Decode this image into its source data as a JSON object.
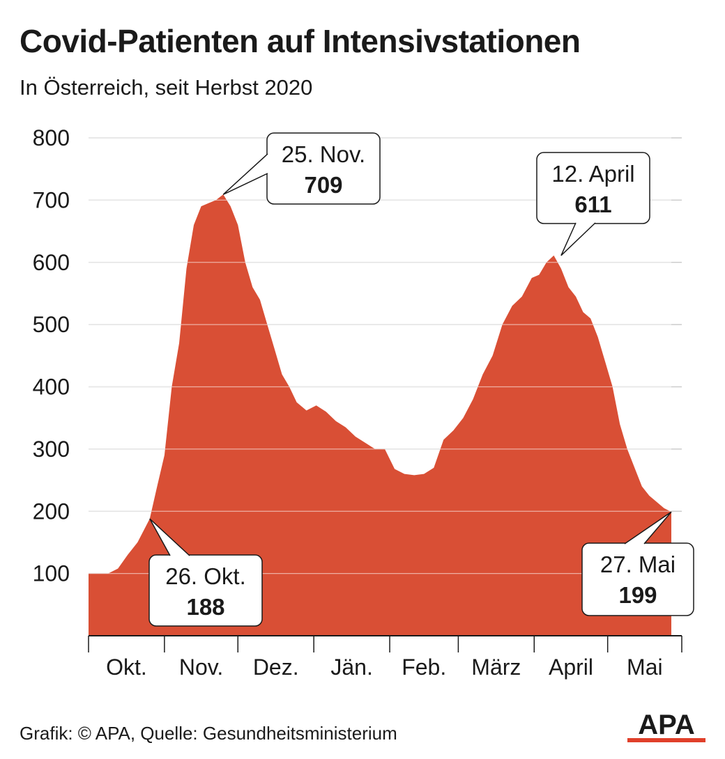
{
  "title": "Covid-Patienten auf Intensivstationen",
  "subtitle": "In Österreich, seit Herbst 2020",
  "footer": "Grafik: © APA, Quelle: Gesundheitsministerium",
  "logo_text": "APA",
  "colors": {
    "area": "#d94f35",
    "grid": "#cccccc",
    "axis": "#1a1a1a",
    "logo": "#e0402a"
  },
  "chart_data": {
    "type": "area",
    "title": "Covid-Patienten auf Intensivstationen",
    "subtitle": "In Österreich, seit Herbst 2020",
    "xlabel": "",
    "ylabel": "",
    "ylim": [
      0,
      800
    ],
    "yticks": [
      100,
      200,
      300,
      400,
      500,
      600,
      700,
      800
    ],
    "grid": true,
    "x_range": [
      "2020-10-01",
      "2021-05-27"
    ],
    "months": [
      "Okt.",
      "Nov.",
      "Dez.",
      "Jän.",
      "Feb.",
      "März",
      "April",
      "Mai"
    ],
    "x": [
      "2020-10-01",
      "2020-10-05",
      "2020-10-09",
      "2020-10-13",
      "2020-10-17",
      "2020-10-21",
      "2020-10-26",
      "2020-10-29",
      "2020-11-01",
      "2020-11-04",
      "2020-11-07",
      "2020-11-10",
      "2020-11-13",
      "2020-11-16",
      "2020-11-19",
      "2020-11-22",
      "2020-11-25",
      "2020-11-28",
      "2020-12-01",
      "2020-12-04",
      "2020-12-07",
      "2020-12-10",
      "2020-12-13",
      "2020-12-16",
      "2020-12-19",
      "2020-12-22",
      "2020-12-25",
      "2020-12-29",
      "2021-01-02",
      "2021-01-06",
      "2021-01-10",
      "2021-01-14",
      "2021-01-18",
      "2021-01-22",
      "2021-01-26",
      "2021-01-30",
      "2021-02-03",
      "2021-02-07",
      "2021-02-11",
      "2021-02-15",
      "2021-02-19",
      "2021-02-23",
      "2021-02-27",
      "2021-03-03",
      "2021-03-07",
      "2021-03-11",
      "2021-03-15",
      "2021-03-19",
      "2021-03-23",
      "2021-03-27",
      "2021-03-31",
      "2021-04-03",
      "2021-04-06",
      "2021-04-09",
      "2021-04-12",
      "2021-04-15",
      "2021-04-18",
      "2021-04-21",
      "2021-04-24",
      "2021-04-27",
      "2021-04-30",
      "2021-05-03",
      "2021-05-06",
      "2021-05-09",
      "2021-05-12",
      "2021-05-15",
      "2021-05-18",
      "2021-05-21",
      "2021-05-24",
      "2021-05-27"
    ],
    "values": [
      100,
      100,
      100,
      108,
      130,
      150,
      188,
      240,
      290,
      400,
      470,
      590,
      660,
      690,
      695,
      700,
      709,
      690,
      660,
      600,
      560,
      540,
      500,
      460,
      420,
      400,
      375,
      362,
      370,
      360,
      345,
      335,
      320,
      310,
      300,
      300,
      268,
      260,
      258,
      260,
      270,
      315,
      330,
      350,
      380,
      420,
      450,
      500,
      530,
      545,
      575,
      580,
      600,
      611,
      590,
      560,
      545,
      520,
      510,
      480,
      440,
      400,
      340,
      300,
      270,
      240,
      225,
      215,
      205,
      199
    ],
    "annotations": [
      {
        "date": "26. Okt.",
        "value": "188",
        "x": "2020-10-26",
        "y": 188
      },
      {
        "date": "25. Nov.",
        "value": "709",
        "x": "2020-11-25",
        "y": 709
      },
      {
        "date": "12. April",
        "value": "611",
        "x": "2021-04-12",
        "y": 611
      },
      {
        "date": "27. Mai",
        "value": "199",
        "x": "2021-05-27",
        "y": 199
      }
    ]
  }
}
